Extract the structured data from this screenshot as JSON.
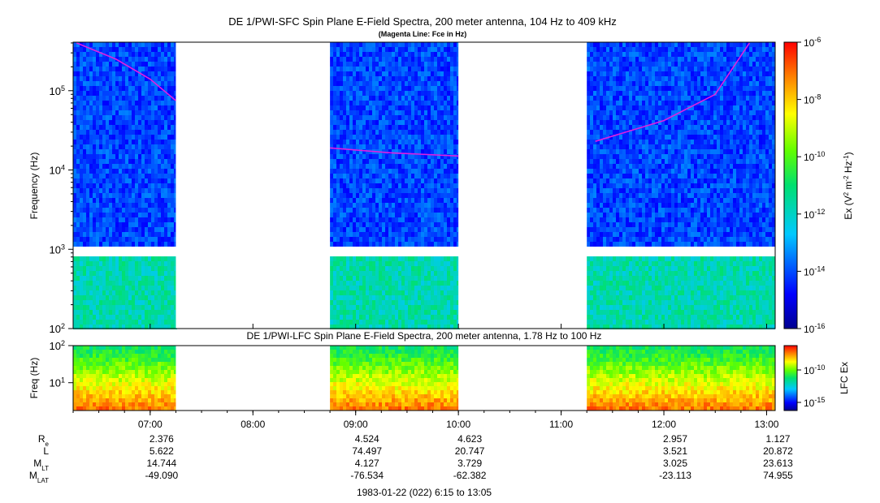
{
  "chart_data": [
    {
      "type": "heatmap",
      "title": "DE 1/PWI-SFC  Spin Plane E-Field Spectra, 200 meter antenna, 104 Hz to 409 kHz",
      "subtitle": "(Magenta Line: Fce in Hz)",
      "ylabel": "Frequency (Hz)",
      "yscale": "log",
      "ylim": [
        100,
        409000
      ],
      "y_tick_labels": [
        "10^2",
        "10^3",
        "10^4",
        "10^5"
      ],
      "data_gaps": [
        [
          "07:15",
          "08:45"
        ],
        [
          "10:00",
          "11:15"
        ]
      ],
      "fce_line": [
        {
          "segment": 1,
          "points": [
            [
              "06:17",
              400000
            ],
            [
              "06:40",
              250000
            ],
            [
              "07:00",
              140000
            ],
            [
              "07:15",
              75000
            ]
          ]
        },
        {
          "segment": 2,
          "points": [
            [
              "08:45",
              19000
            ],
            [
              "09:20",
              16500
            ],
            [
              "10:00",
              15000
            ]
          ]
        },
        {
          "segment": 3,
          "points": [
            [
              "11:20",
              23000
            ],
            [
              "12:00",
              42000
            ],
            [
              "12:30",
              90000
            ],
            [
              "12:50",
              400000
            ]
          ]
        }
      ],
      "colorbar": {
        "label": "Ex (V^2 m^-2 Hz^-1)",
        "scale": "log",
        "range": [
          1e-16,
          1e-06
        ],
        "tick_labels": [
          "10^-6",
          "10^-8",
          "10^-10",
          "10^-12",
          "10^-14",
          "10^-16"
        ]
      },
      "fce_color": "#e020e0"
    },
    {
      "type": "heatmap",
      "title": "DE 1/PWI-LFC  Spin Plane E-Field Spectra, 200 meter antenna, 1.78 Hz to 100 Hz",
      "ylabel": "Freq (Hz)",
      "yscale": "log",
      "ylim": [
        1.78,
        100
      ],
      "y_tick_labels": [
        "10^1",
        "10^2"
      ],
      "data_gaps": [
        [
          "07:15",
          "08:45"
        ],
        [
          "10:00",
          "11:15"
        ]
      ],
      "colorbar": {
        "label": "LFC Ex",
        "scale": "log",
        "tick_labels": [
          "10^-10",
          "10^-15"
        ]
      }
    }
  ],
  "x_axis": {
    "range": [
      "06:15",
      "13:05"
    ],
    "tick_labels": [
      "07:00",
      "08:00",
      "09:00",
      "10:00",
      "11:00",
      "12:00",
      "13:00"
    ]
  },
  "ephemeris": {
    "rows": [
      {
        "label": "R",
        "sub": "e",
        "values": [
          "2.376",
          "",
          "4.524",
          "4.623",
          "",
          "2.957",
          "1.127"
        ]
      },
      {
        "label": "L",
        "sub": "",
        "values": [
          "5.622",
          "",
          "74.497",
          "20.747",
          "",
          "3.521",
          "20.872"
        ]
      },
      {
        "label": "M",
        "sub": "LT",
        "values": [
          "14.744",
          "",
          "4.127",
          "3.729",
          "",
          "3.025",
          "23.613"
        ]
      },
      {
        "label": "M",
        "sub": "LAT",
        "values": [
          "-49.090",
          "",
          "-76.534",
          "-62.382",
          "",
          "-23.113",
          "74.955"
        ]
      }
    ]
  },
  "footer": "1983-01-22 (022) 6:15 to 13:05"
}
